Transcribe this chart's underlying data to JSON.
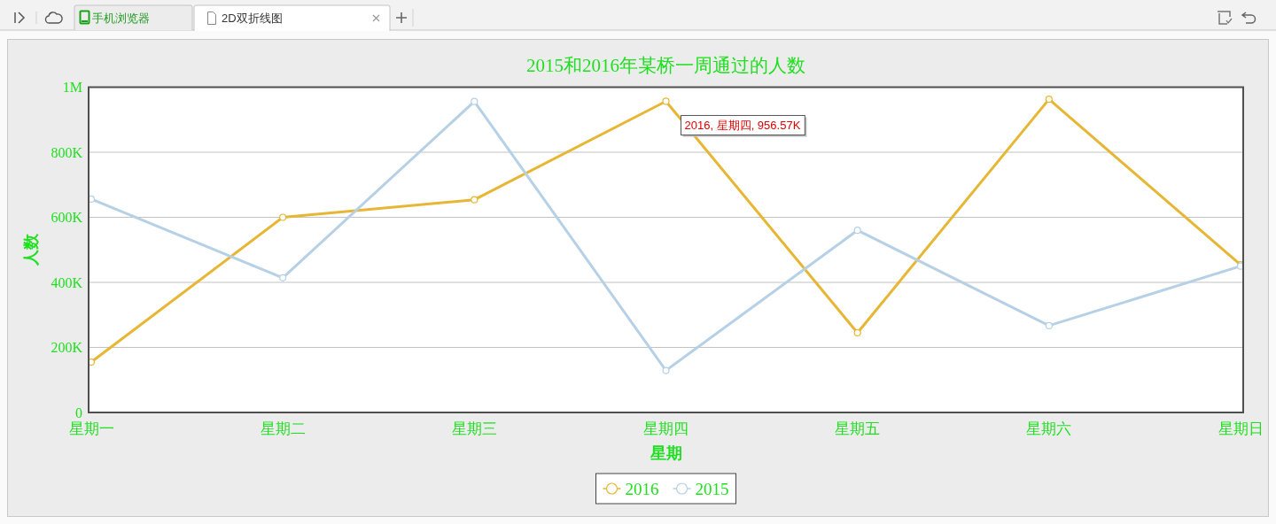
{
  "chart_data": {
    "type": "line",
    "title": "2015和2016年某桥一周通过的人数",
    "xlabel": "星期",
    "ylabel": "人数",
    "categories": [
      "星期一",
      "星期二",
      "星期三",
      "星期四",
      "星期五",
      "星期六",
      "星期日"
    ],
    "series": [
      {
        "name": "2016",
        "color": "#e6b634",
        "values": [
          155000,
          600000,
          654000,
          956570,
          245000,
          963000,
          454000
        ]
      },
      {
        "name": "2015",
        "color": "#b6d0e6",
        "values": [
          656000,
          414000,
          956000,
          129000,
          560000,
          267000,
          450000
        ]
      }
    ],
    "ylim": [
      0,
      1000000
    ],
    "yticks": [
      0,
      {
        "value": 200000,
        "label": "200K"
      },
      {
        "value": 400000,
        "label": "400K"
      },
      {
        "value": 600000,
        "label": "600K"
      },
      {
        "value": 800000,
        "label": "800K"
      },
      {
        "value": 1000000,
        "label": "1M"
      }
    ],
    "grid": "y",
    "legend": "bottom",
    "marker": "circle",
    "annotations": [
      {
        "text": "2016, 星期四, 956.57K",
        "x": "星期四",
        "y": 956570
      },
      "手机浏览器",
      "2D双折线图"
    ]
  }
}
